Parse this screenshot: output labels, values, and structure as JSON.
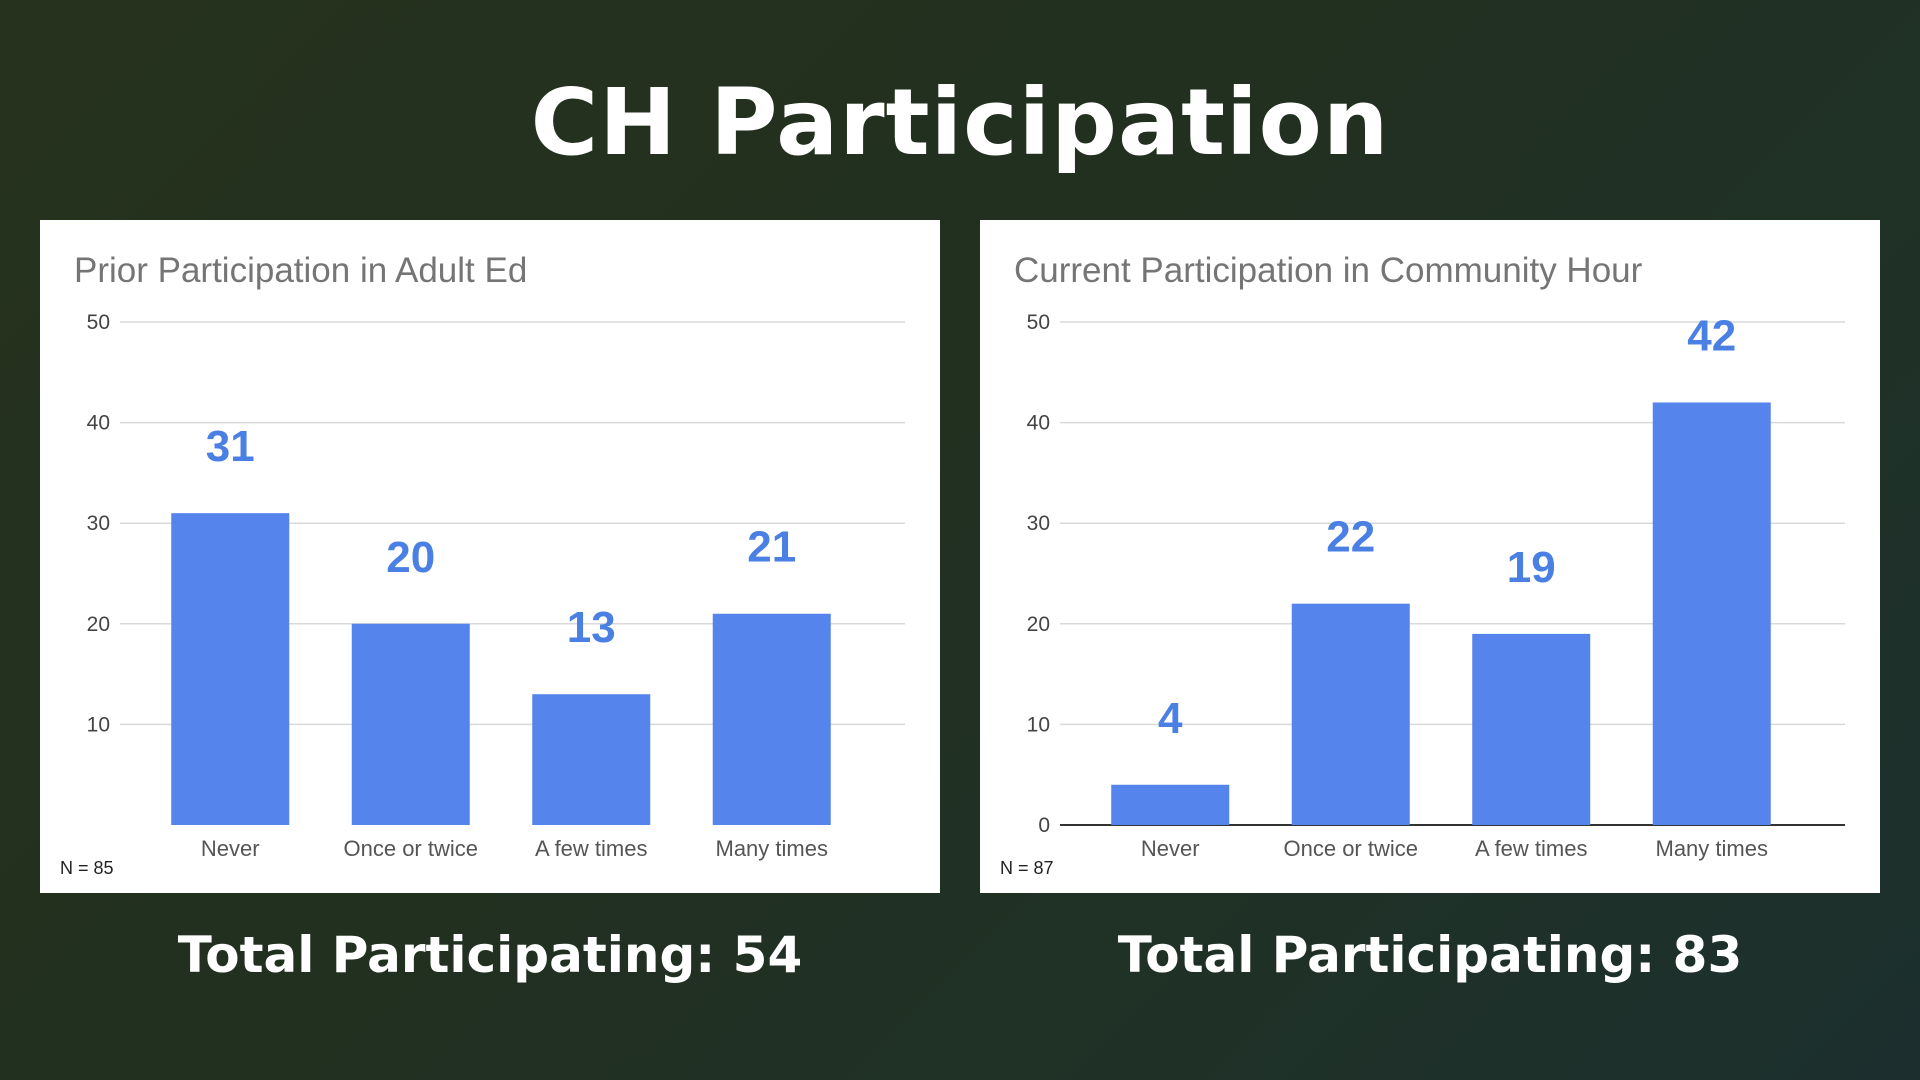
{
  "slide": {
    "title": "CH Participation"
  },
  "colors": {
    "bar": "#5584ec",
    "value_label": "#4a7fe4",
    "grid": "#d9d9d9",
    "baseline": "#333333",
    "background_start": "#26321d",
    "background_end": "#1c2f2e"
  },
  "totals": [
    "Total Participating: 54",
    "Total Participating: 83"
  ],
  "chart_data": [
    {
      "type": "bar",
      "title": "Prior Participation in Adult Ed",
      "categories": [
        "Never",
        "Once or twice",
        "A few times",
        "Many times"
      ],
      "values": [
        31,
        20,
        13,
        21
      ],
      "value_labels": [
        "31",
        "20",
        "13",
        "21"
      ],
      "ylim": [
        0,
        50
      ],
      "yticks": [
        "10",
        "20",
        "30",
        "40",
        "50"
      ],
      "grid": true,
      "show_zero_tick": false,
      "footnote": "N = 85",
      "xlabel": "",
      "ylabel": ""
    },
    {
      "type": "bar",
      "title": "Current Participation in Community Hour",
      "categories": [
        "Never",
        "Once or twice",
        "A few times",
        "Many times"
      ],
      "values": [
        4,
        22,
        19,
        42
      ],
      "value_labels": [
        "4",
        "22",
        "19",
        "42"
      ],
      "ylim": [
        0,
        50
      ],
      "yticks": [
        "0",
        "10",
        "20",
        "30",
        "40",
        "50"
      ],
      "grid": true,
      "show_zero_tick": true,
      "footnote": "N = 87",
      "xlabel": "",
      "ylabel": ""
    }
  ]
}
